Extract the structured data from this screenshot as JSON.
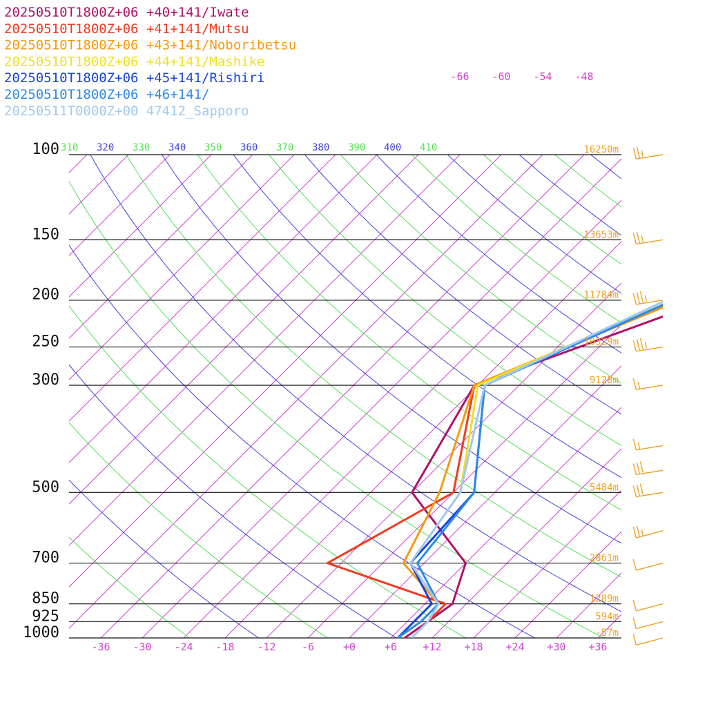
{
  "chart_data": {
    "type": "line",
    "title": "",
    "subtitle": "",
    "legend": [
      {
        "label": "20250510T1800Z+06 +40+141/Iwate",
        "color": "#b0106a"
      },
      {
        "label": "20250510T1800Z+06 +41+141/Mutsu",
        "color": "#f03a20"
      },
      {
        "label": "20250510T1800Z+06 +43+141/Noboribetsu",
        "color": "#f59a10"
      },
      {
        "label": "20250510T1800Z+06 +44+141/Mashike",
        "color": "#f0e020"
      },
      {
        "label": "20250510T1800Z+06 +45+141/Rishiri",
        "color": "#1a44d8"
      },
      {
        "label": "20250510T1800Z+06 +46+141/",
        "color": "#2a8ae8"
      },
      {
        "label": "20250511T0000Z+00 47412_Sapporo",
        "color": "#a0c8f0"
      }
    ],
    "pressure_levels": [
      100,
      150,
      200,
      250,
      300,
      500,
      700,
      850,
      925,
      1000
    ],
    "pressure_labels": [
      "100",
      "150",
      "200",
      "250",
      "300",
      "500",
      "700",
      "850",
      "925",
      "1000"
    ],
    "height_labels": [
      "16250m",
      "13653m",
      "11784m",
      "10329m",
      "9128m",
      "5484m",
      "2861m",
      "1289m",
      "594m",
      "-57m"
    ],
    "temperature_ticks": [
      "-36",
      "-30",
      "-24",
      "-18",
      "-12",
      "-6",
      "+0",
      "+6",
      "+12",
      "+18",
      "+24",
      "+30",
      "+36"
    ],
    "upper_temperature_ticks": [
      "-66",
      "-60",
      "-54",
      "-48"
    ],
    "theta_ticks": [
      {
        "label": "310",
        "color": "#50e050"
      },
      {
        "label": "320",
        "color": "#4040e0"
      },
      {
        "label": "330",
        "color": "#50e050"
      },
      {
        "label": "340",
        "color": "#4040e0"
      },
      {
        "label": "350",
        "color": "#50e050"
      },
      {
        "label": "360",
        "color": "#4040e0"
      },
      {
        "label": "370",
        "color": "#50e050"
      },
      {
        "label": "380",
        "color": "#4040e0"
      },
      {
        "label": "390",
        "color": "#50e050"
      },
      {
        "label": "400",
        "color": "#4040e0"
      },
      {
        "label": "410",
        "color": "#50e050"
      }
    ],
    "series": [
      {
        "name": "Iwate",
        "color": "#b0106a",
        "kind": "temperature",
        "points": [
          [
            6.8,
            100
          ],
          [
            3,
            200
          ],
          [
            -18.5,
            300
          ],
          [
            -12,
            500
          ],
          [
            6,
            700
          ],
          [
            10,
            850
          ],
          [
            9,
            925
          ],
          [
            8,
            1000
          ]
        ]
      },
      {
        "name": "Mutsu",
        "color": "#f03a20",
        "kind": "temperature",
        "points": [
          [
            6,
            100
          ],
          [
            -1,
            200
          ],
          [
            -18.5,
            300
          ],
          [
            -6,
            500
          ],
          [
            -14,
            700
          ],
          [
            9,
            850
          ],
          [
            9,
            925
          ],
          [
            9,
            1000
          ]
        ]
      },
      {
        "name": "Noboribetsu",
        "color": "#f59a10",
        "kind": "temperature",
        "points": [
          [
            8,
            100
          ],
          [
            -1,
            200
          ],
          [
            -18.5,
            300
          ],
          [
            -8,
            500
          ],
          [
            -3,
            700
          ],
          [
            8,
            850
          ],
          [
            8,
            925
          ],
          [
            7,
            1000
          ]
        ]
      },
      {
        "name": "Mashike",
        "color": "#f0e020",
        "kind": "temperature",
        "points": [
          [
            8,
            100
          ],
          [
            -2,
            200
          ],
          [
            -18,
            300
          ],
          [
            -5,
            500
          ],
          [
            -2,
            700
          ],
          [
            8,
            850
          ],
          [
            8,
            925
          ],
          [
            7,
            1000
          ]
        ]
      },
      {
        "name": "Rishiri",
        "color": "#1a44d8",
        "kind": "temperature",
        "points": [
          [
            9,
            100
          ],
          [
            -2,
            200
          ],
          [
            -17,
            300
          ],
          [
            -3,
            500
          ],
          [
            -2,
            700
          ],
          [
            7,
            850
          ],
          [
            7,
            925
          ],
          [
            7,
            1000
          ]
        ]
      },
      {
        "name": "+46+141",
        "color": "#2a8ae8",
        "kind": "temperature",
        "points": [
          [
            8.5,
            100
          ],
          [
            -2,
            200
          ],
          [
            -17,
            300
          ],
          [
            -3,
            500
          ],
          [
            -1,
            700
          ],
          [
            8,
            850
          ],
          [
            8,
            925
          ],
          [
            7,
            1000
          ]
        ]
      },
      {
        "name": "Sapporo",
        "color": "#a0c8f0",
        "kind": "temperature",
        "points": [
          [
            6,
            100
          ],
          [
            -3,
            200
          ],
          [
            -17,
            300
          ],
          [
            -5,
            500
          ],
          [
            -2,
            700
          ],
          [
            8,
            850
          ],
          [
            9,
            925
          ],
          [
            9,
            1000
          ]
        ]
      }
    ],
    "wind_barbs": [
      {
        "pressure": 100,
        "direction_deg": 250,
        "speed_kt": 25
      },
      {
        "pressure": 150,
        "direction_deg": 250,
        "speed_kt": 25
      },
      {
        "pressure": 200,
        "direction_deg": 260,
        "speed_kt": 35
      },
      {
        "pressure": 250,
        "direction_deg": 270,
        "speed_kt": 35
      },
      {
        "pressure": 300,
        "direction_deg": 260,
        "speed_kt": 15
      },
      {
        "pressure": 400,
        "direction_deg": 260,
        "speed_kt": 15
      },
      {
        "pressure": 450,
        "direction_deg": 250,
        "speed_kt": 30
      },
      {
        "pressure": 500,
        "direction_deg": 250,
        "speed_kt": 30
      },
      {
        "pressure": 600,
        "direction_deg": 250,
        "speed_kt": 25
      },
      {
        "pressure": 700,
        "direction_deg": 250,
        "speed_kt": 10
      },
      {
        "pressure": 850,
        "direction_deg": 250,
        "speed_kt": 10
      },
      {
        "pressure": 925,
        "direction_deg": 260,
        "speed_kt": 10
      },
      {
        "pressure": 1000,
        "direction_deg": 240,
        "speed_kt": 10
      }
    ],
    "grid": true,
    "legend_placement": "top-left"
  }
}
